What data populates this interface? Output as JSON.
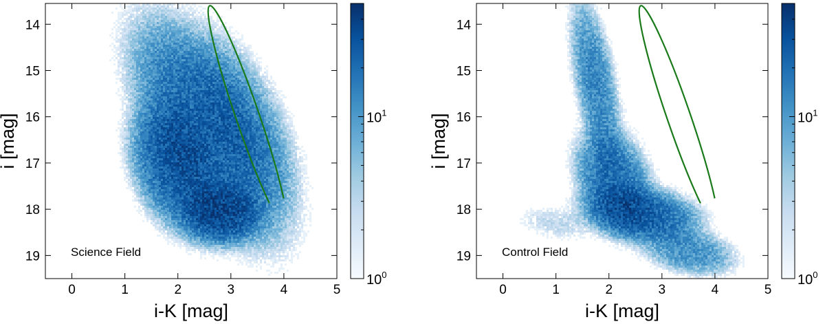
{
  "chart_data": [
    {
      "type": "heatmap",
      "title": "",
      "annotation": "Science Field",
      "xlabel": "i-K [mag]",
      "ylabel": "i [mag]",
      "xlim": [
        -0.5,
        5
      ],
      "ylim": [
        19.5,
        13.55
      ],
      "y_inverted": true,
      "xticks": [
        0,
        1,
        2,
        3,
        4,
        5
      ],
      "yticks": [
        14,
        15,
        16,
        17,
        18,
        19
      ],
      "colorbar": {
        "scale": "log",
        "cmap": "Blues",
        "range": [
          1,
          50
        ],
        "ticks": [
          {
            "value": 1,
            "base": "10",
            "exp": "0"
          },
          {
            "value": 10,
            "base": "10",
            "exp": "1"
          }
        ]
      },
      "density_components": [
        {
          "center": [
            2.6,
            16.3
          ],
          "sigma": [
            0.75,
            1.55
          ],
          "tilt": 0.38,
          "peak": 22
        },
        {
          "center": [
            1.9,
            17.1
          ],
          "sigma": [
            0.5,
            0.9
          ],
          "tilt": 0.2,
          "peak": 22
        },
        {
          "center": [
            2.8,
            18.1
          ],
          "sigma": [
            0.5,
            0.45
          ],
          "tilt": 0.0,
          "peak": 28
        },
        {
          "center": [
            3.3,
            16.0
          ],
          "sigma": [
            0.5,
            1.2
          ],
          "tilt": 0.35,
          "peak": 6
        }
      ],
      "background_level": 0.35,
      "ellipse": {
        "color": "#1a7a1a",
        "endpoints": [
          [
            2.6,
            13.6
          ],
          [
            4.03,
            18.38
          ]
        ],
        "half_width": 0.22
      }
    },
    {
      "type": "heatmap",
      "title": "",
      "annotation": "Control Field",
      "xlabel": "i-K [mag]",
      "ylabel": "i [mag]",
      "xlim": [
        -0.5,
        5
      ],
      "ylim": [
        19.5,
        13.55
      ],
      "y_inverted": true,
      "xticks": [
        0,
        1,
        2,
        3,
        4,
        5
      ],
      "yticks": [
        14,
        15,
        16,
        17,
        18,
        19
      ],
      "colorbar": {
        "scale": "log",
        "cmap": "Blues",
        "range": [
          1,
          50
        ],
        "ticks": [
          {
            "value": 1,
            "base": "10",
            "exp": "0"
          },
          {
            "value": 10,
            "base": "10",
            "exp": "1"
          }
        ]
      },
      "density_components": [
        {
          "center": [
            1.75,
            15.3
          ],
          "sigma": [
            0.25,
            1.2
          ],
          "tilt": 0.15,
          "peak": 12
        },
        {
          "center": [
            2.1,
            17.4
          ],
          "sigma": [
            0.45,
            0.75
          ],
          "tilt": 0.2,
          "peak": 18
        },
        {
          "center": [
            2.6,
            18.1
          ],
          "sigma": [
            0.7,
            0.4
          ],
          "tilt": 0.45,
          "peak": 22
        },
        {
          "center": [
            3.5,
            18.9
          ],
          "sigma": [
            0.55,
            0.35
          ],
          "tilt": 0.55,
          "peak": 10
        },
        {
          "center": [
            1.0,
            18.3
          ],
          "sigma": [
            0.45,
            0.25
          ],
          "tilt": 0.5,
          "peak": 2
        }
      ],
      "background_level": 0.3,
      "ellipse": {
        "color": "#1a7a1a",
        "endpoints": [
          [
            2.6,
            13.6
          ],
          [
            4.03,
            18.38
          ]
        ],
        "half_width": 0.22
      }
    }
  ]
}
